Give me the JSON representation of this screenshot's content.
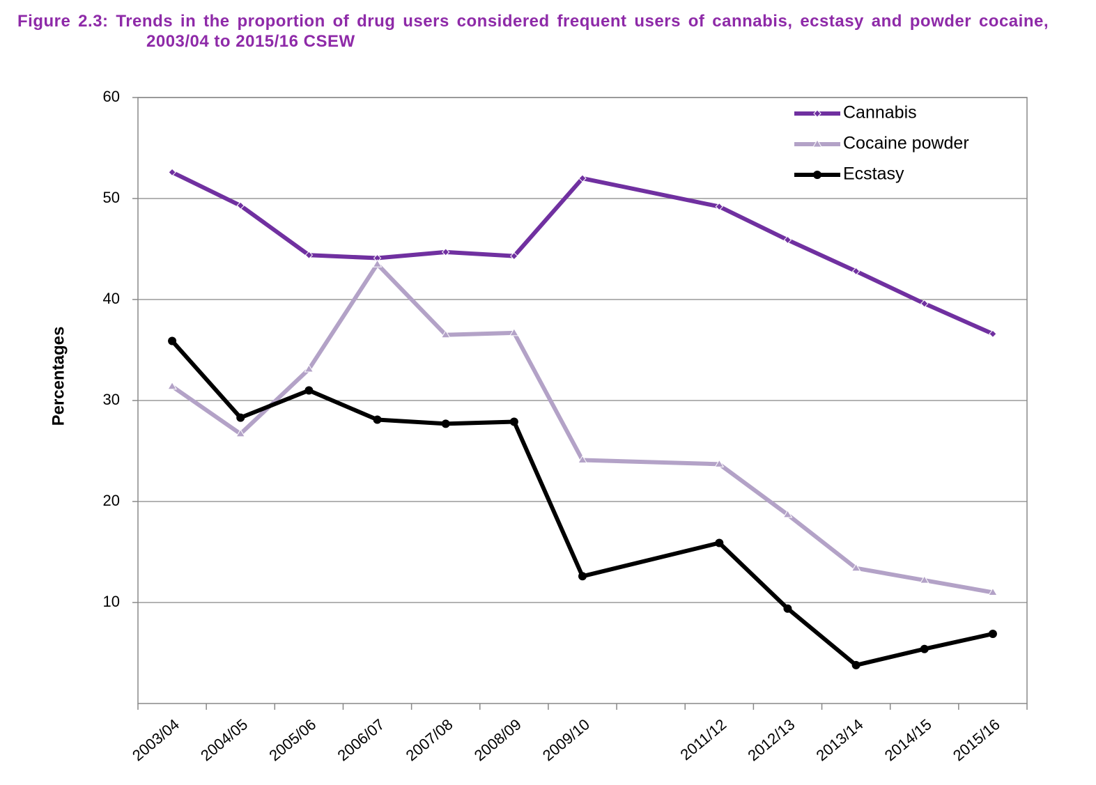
{
  "chart_data": {
    "type": "line",
    "title": "Figure 2.3: Trends in the proportion of drug users considered frequent users of cannabis, ecstasy and powder cocaine, 2003/04 to 2015/16 CSEW",
    "y_label": "Percentages",
    "categories": [
      "2003/04",
      "2004/05",
      "2005/06",
      "2006/07",
      "2007/08",
      "2008/09",
      "2009/10",
      null,
      "2011/12",
      "2012/13",
      "2013/14",
      "2014/15",
      "2015/16"
    ],
    "series": [
      {
        "name": "Cannabis",
        "color": "#7030a0",
        "marker": "diamond",
        "values": [
          52.6,
          49.3,
          44.4,
          44.1,
          44.7,
          44.3,
          52.0,
          null,
          49.2,
          45.9,
          42.8,
          39.6,
          36.6
        ]
      },
      {
        "name": "Cocaine powder",
        "color": "#b3a2c7",
        "marker": "triangle",
        "values": [
          31.4,
          26.7,
          33.1,
          43.5,
          36.5,
          36.7,
          24.1,
          null,
          23.7,
          18.7,
          13.4,
          12.2,
          11.0
        ]
      },
      {
        "name": "Ecstasy",
        "color": "#000000",
        "marker": "circle",
        "values": [
          35.9,
          28.3,
          31.0,
          28.1,
          27.7,
          27.9,
          12.6,
          null,
          15.9,
          9.4,
          3.8,
          5.4,
          6.9
        ]
      }
    ],
    "ylim": [
      0,
      60
    ],
    "yticks": [
      10,
      20,
      30,
      40,
      50,
      60
    ],
    "grid": true,
    "span_gaps": true,
    "legend": "top-right"
  }
}
